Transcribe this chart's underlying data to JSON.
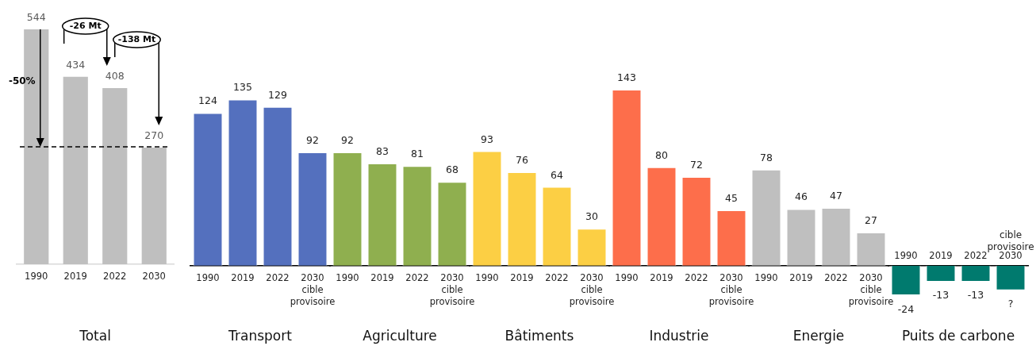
{
  "chart_data": [
    {
      "type": "bar",
      "xlabel": "Total",
      "categories": [
        "1990",
        "2019",
        "2022",
        "2030"
      ],
      "values": [
        544,
        434,
        408,
        270
      ],
      "color": "#bfbfbf",
      "data_labels": true,
      "ref_lines": [
        {
          "axis": "y",
          "value": 272,
          "line_style": "dashed",
          "color": "#000000"
        }
      ],
      "annotations": [
        "-50%",
        "-26 Mt",
        "-138 Mt"
      ]
    },
    {
      "type": "bar",
      "xlabel": "Transport",
      "categories": [
        "1990",
        "2019",
        "2022",
        "2030\ncible\nprovisoire"
      ],
      "values": [
        124,
        135,
        129,
        92
      ],
      "color": "#5470be",
      "data_labels": true
    },
    {
      "type": "bar",
      "xlabel": "Agriculture",
      "categories": [
        "1990",
        "2019",
        "2022",
        "2030\ncible\nprovisoire"
      ],
      "values": [
        92,
        83,
        81,
        68
      ],
      "color": "#8faf4f",
      "data_labels": true
    },
    {
      "type": "bar",
      "xlabel": "Bâtiments",
      "categories": [
        "1990",
        "2019",
        "2022",
        "2030\ncible\nprovisoire"
      ],
      "values": [
        93,
        76,
        64,
        30
      ],
      "color": "#fccf44",
      "data_labels": true
    },
    {
      "type": "bar",
      "xlabel": "Industrie",
      "categories": [
        "1990",
        "2019",
        "2022",
        "2030\ncible\nprovisoire"
      ],
      "values": [
        143,
        80,
        72,
        45
      ],
      "color": "#fd6e4b",
      "data_labels": true
    },
    {
      "type": "bar",
      "xlabel": "Energie",
      "categories": [
        "1990",
        "2019",
        "2022",
        "2030\ncible\nprovisoire"
      ],
      "values": [
        78,
        46,
        47,
        27
      ],
      "color": "#bfbfbf",
      "data_labels": true
    },
    {
      "type": "bar",
      "xlabel": "Puits de carbone",
      "categories": [
        "1990",
        "2019",
        "2022",
        "2030"
      ],
      "values": [
        -24,
        -13,
        -13,
        -20
      ],
      "value_labels": [
        "-24",
        "-13",
        "-13",
        "?"
      ],
      "color": "#007a6e",
      "annotations": [
        "cible provisoire"
      ]
    }
  ]
}
